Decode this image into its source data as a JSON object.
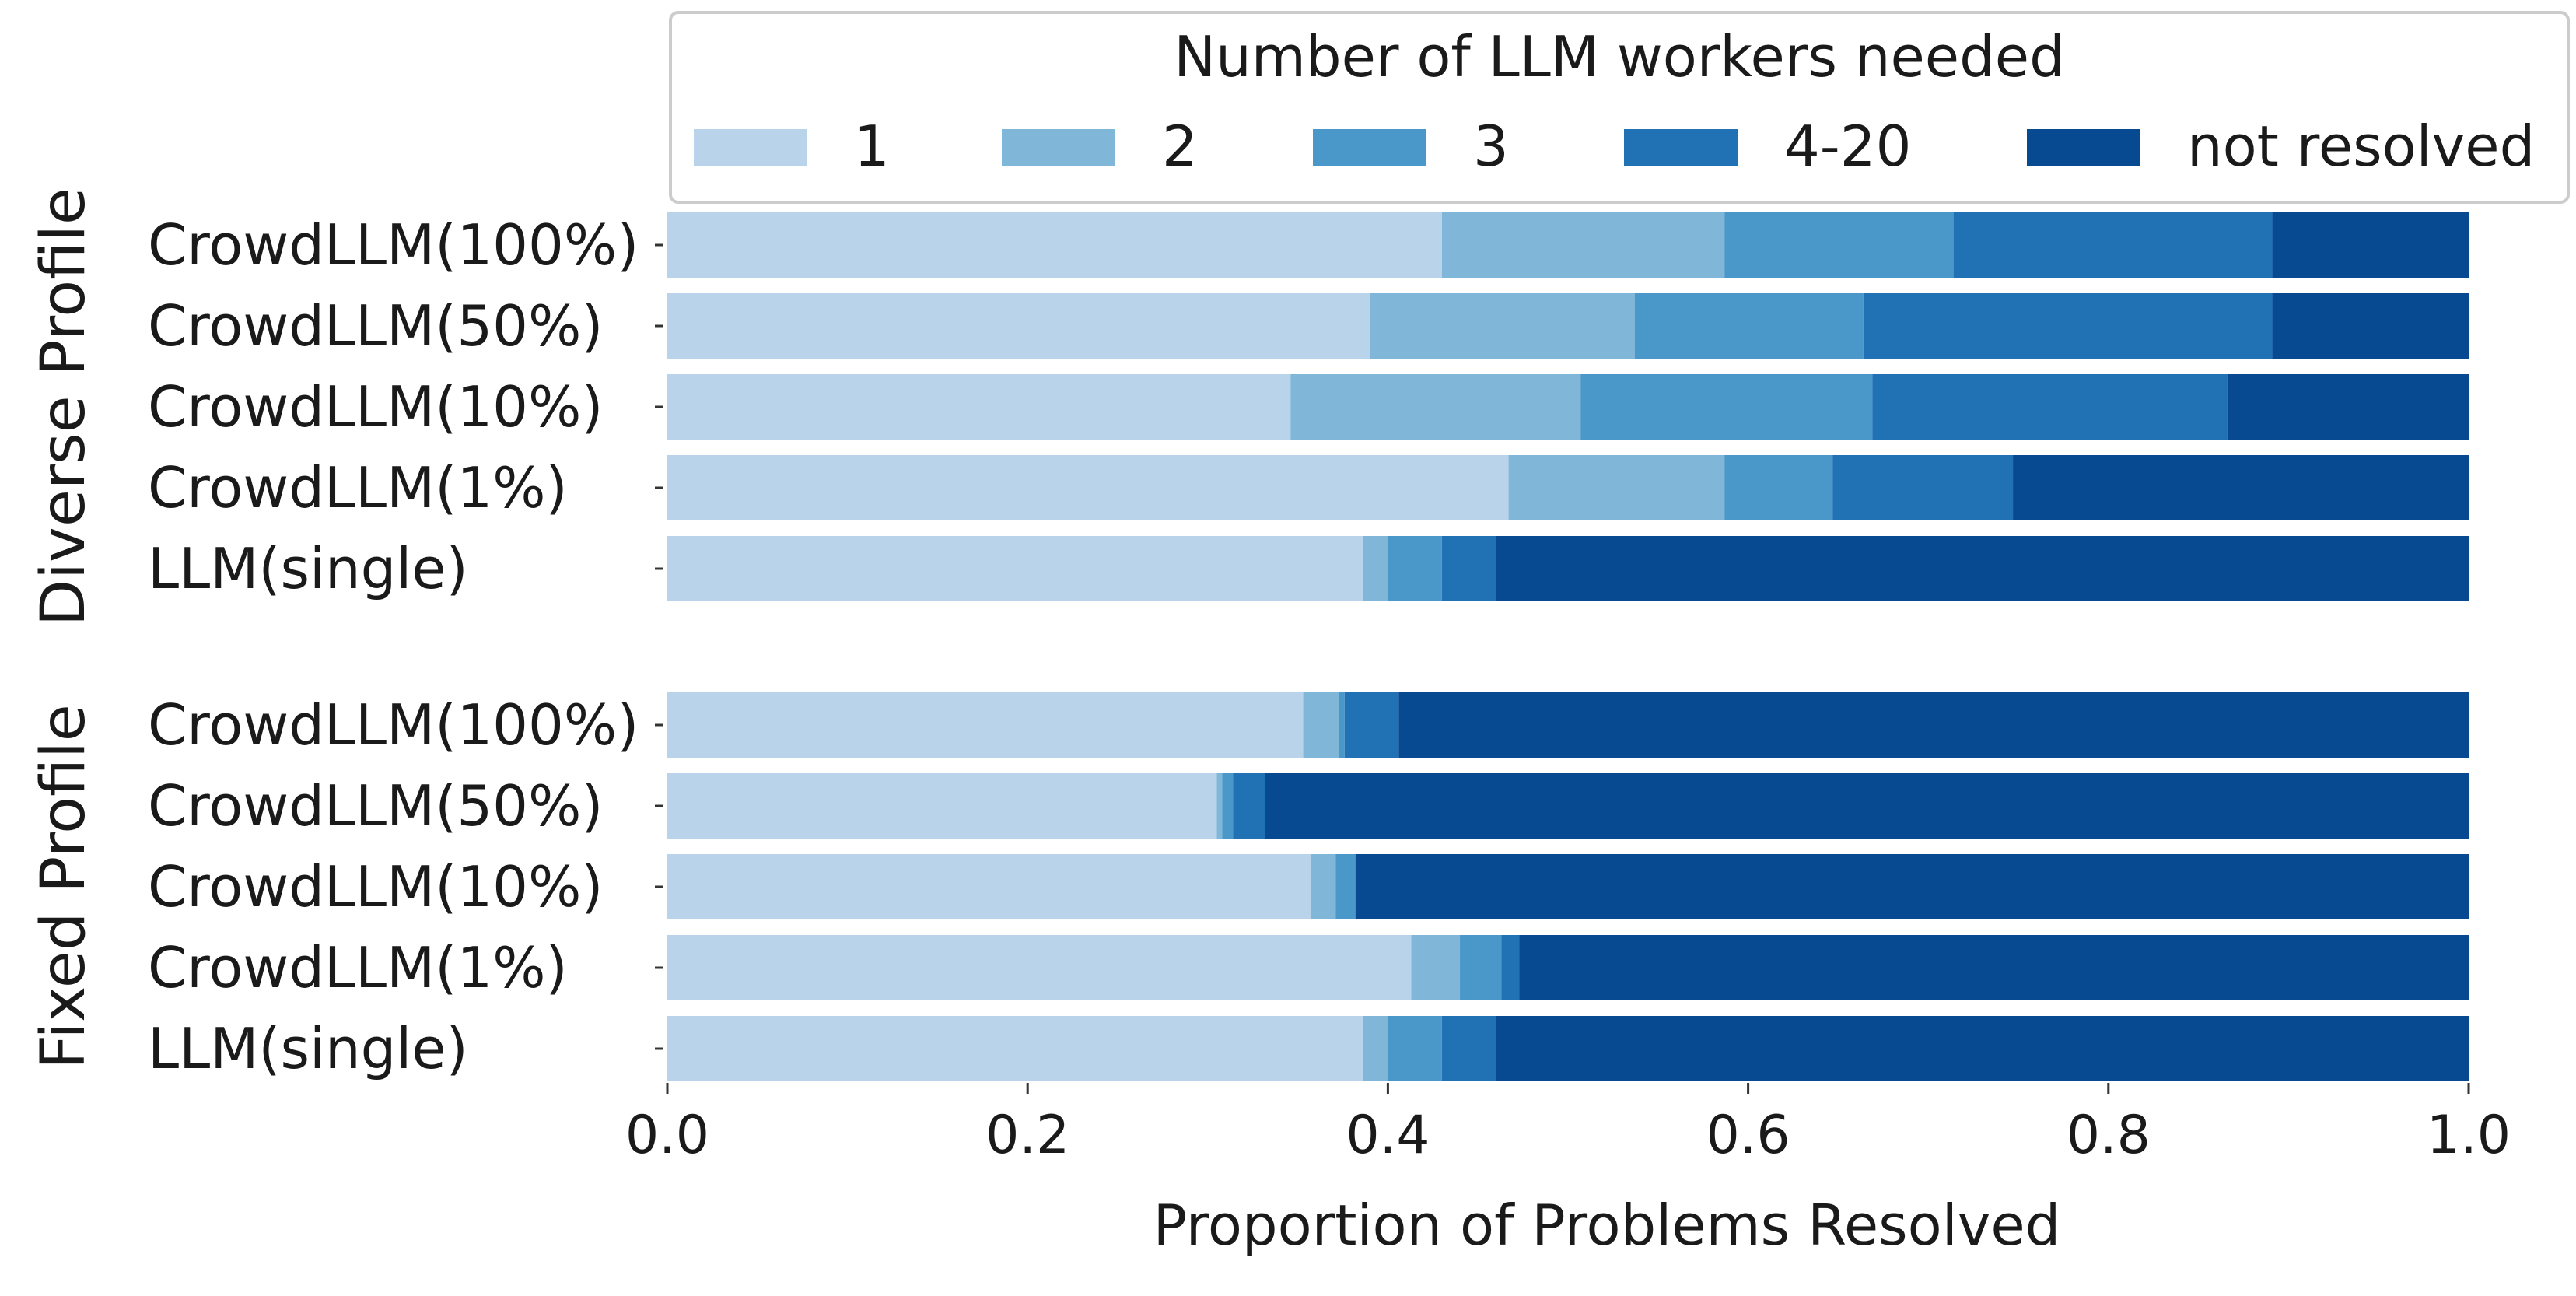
{
  "chart_data": {
    "type": "bar",
    "orientation": "horizontal",
    "stacked": true,
    "xlabel": "Proportion of Problems Resolved",
    "xlim": [
      0.0,
      1.0
    ],
    "xticks": [
      "0.0",
      "0.2",
      "0.4",
      "0.6",
      "0.8",
      "1.0"
    ],
    "grid": false,
    "legend": {
      "title": "Number of LLM workers needed",
      "placement": "top",
      "entries": [
        "1",
        "2",
        "3",
        "4-20",
        "not resolved"
      ]
    },
    "series_colors": [
      "#b9d4ea",
      "#80b7d9",
      "#4a97c9",
      "#2171b5",
      "#084a91"
    ],
    "groups": [
      {
        "label": "Diverse Profile",
        "bars": [
          {
            "label": "CrowdLLM(100%)",
            "values": [
              0.43,
              0.157,
              0.127,
              0.177,
              0.109
            ]
          },
          {
            "label": "CrowdLLM(50%)",
            "values": [
              0.39,
              0.147,
              0.127,
              0.227,
              0.109
            ]
          },
          {
            "label": "CrowdLLM(10%)",
            "values": [
              0.346,
              0.161,
              0.162,
              0.197,
              0.134
            ]
          },
          {
            "label": "CrowdLLM(1%)",
            "values": [
              0.467,
              0.12,
              0.06,
              0.1,
              0.253
            ]
          },
          {
            "label": "LLM(single)",
            "values": [
              0.386,
              0.014,
              0.03,
              0.03,
              0.54
            ]
          }
        ]
      },
      {
        "label": "Fixed Profile",
        "bars": [
          {
            "label": "CrowdLLM(100%)",
            "values": [
              0.353,
              0.02,
              0.003,
              0.03,
              0.594
            ]
          },
          {
            "label": "CrowdLLM(50%)",
            "values": [
              0.305,
              0.003,
              0.006,
              0.018,
              0.668
            ]
          },
          {
            "label": "CrowdLLM(10%)",
            "values": [
              0.357,
              0.014,
              0.011,
              0.0,
              0.618
            ]
          },
          {
            "label": "CrowdLLM(1%)",
            "values": [
              0.413,
              0.027,
              0.023,
              0.01,
              0.527
            ]
          },
          {
            "label": "LLM(single)",
            "values": [
              0.386,
              0.014,
              0.03,
              0.03,
              0.54
            ]
          }
        ]
      }
    ]
  }
}
